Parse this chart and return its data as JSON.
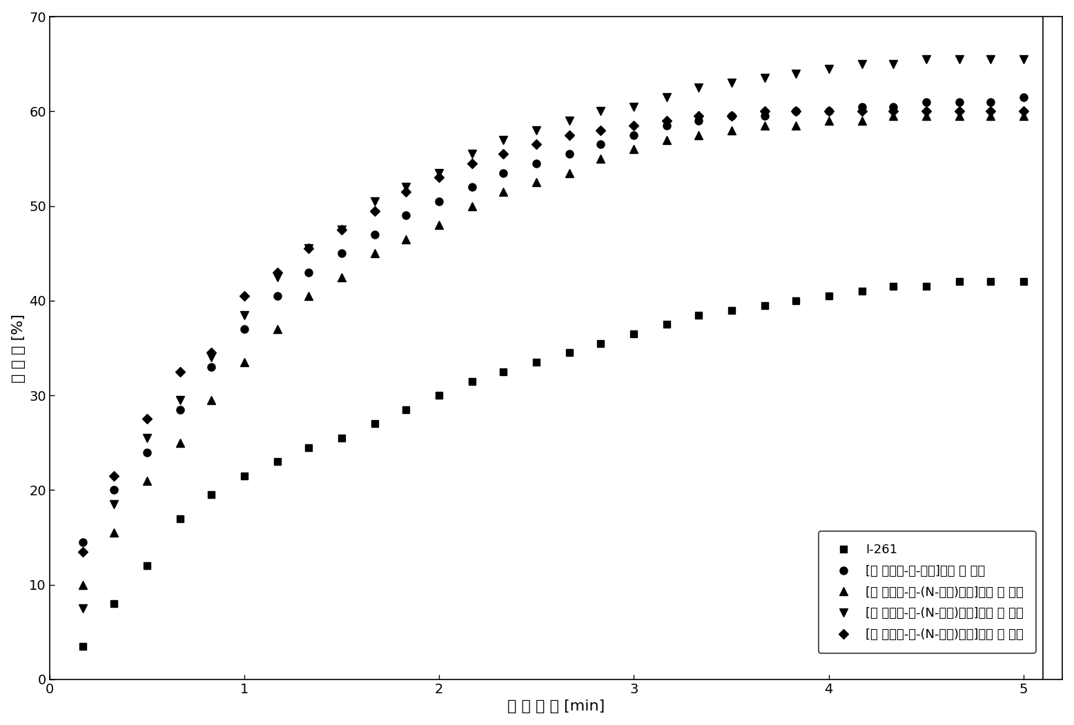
{
  "title": "",
  "xlabel": "光 照 时 间 [min]",
  "ylabel": "转 化 率 [%]",
  "xlim": [
    0,
    5.2
  ],
  "ylim": [
    0,
    70
  ],
  "xticks": [
    0,
    1,
    2,
    3,
    4,
    5
  ],
  "yticks": [
    0,
    10,
    20,
    30,
    40,
    50,
    60,
    70
  ],
  "series": [
    {
      "label": "I-261",
      "marker": "s",
      "color": "#000000",
      "markersize": 7,
      "x": [
        0.17,
        0.33,
        0.5,
        0.67,
        0.83,
        1.0,
        1.17,
        1.33,
        1.5,
        1.67,
        1.83,
        2.0,
        2.17,
        2.33,
        2.5,
        2.67,
        2.83,
        3.0,
        3.17,
        3.33,
        3.5,
        3.67,
        3.83,
        4.0,
        4.17,
        4.33,
        4.5,
        4.67,
        4.83,
        5.0
      ],
      "y": [
        3.5,
        8.0,
        12.0,
        17.0,
        19.5,
        21.5,
        23.0,
        24.5,
        25.5,
        27.0,
        28.5,
        30.0,
        31.5,
        32.5,
        33.5,
        34.5,
        35.5,
        36.5,
        37.5,
        38.5,
        39.0,
        39.5,
        40.0,
        40.5,
        41.0,
        41.5,
        41.5,
        42.0,
        42.0,
        42.0
      ]
    },
    {
      "label": "[环 戊二烯-铁-咋唢]六氟 磷 酸盐",
      "marker": "o",
      "color": "#000000",
      "markersize": 8,
      "x": [
        0.17,
        0.33,
        0.5,
        0.67,
        0.83,
        1.0,
        1.17,
        1.33,
        1.5,
        1.67,
        1.83,
        2.0,
        2.17,
        2.33,
        2.5,
        2.67,
        2.83,
        3.0,
        3.17,
        3.33,
        3.5,
        3.67,
        3.83,
        4.0,
        4.17,
        4.33,
        4.5,
        4.67,
        4.83,
        5.0
      ],
      "y": [
        14.5,
        20.0,
        24.0,
        28.5,
        33.0,
        37.0,
        40.5,
        43.0,
        45.0,
        47.0,
        49.0,
        50.5,
        52.0,
        53.5,
        54.5,
        55.5,
        56.5,
        57.5,
        58.5,
        59.0,
        59.5,
        59.5,
        60.0,
        60.0,
        60.5,
        60.5,
        61.0,
        61.0,
        61.0,
        61.5
      ]
    },
    {
      "label": "[环 戊二烯-铁-(N-乙基)咋唢]六氟 磷 酸盐",
      "marker": "^",
      "color": "#000000",
      "markersize": 8,
      "x": [
        0.17,
        0.33,
        0.5,
        0.67,
        0.83,
        1.0,
        1.17,
        1.33,
        1.5,
        1.67,
        1.83,
        2.0,
        2.17,
        2.33,
        2.5,
        2.67,
        2.83,
        3.0,
        3.17,
        3.33,
        3.5,
        3.67,
        3.83,
        4.0,
        4.17,
        4.33,
        4.5,
        4.67,
        4.83,
        5.0
      ],
      "y": [
        10.0,
        15.5,
        21.0,
        25.0,
        29.5,
        33.5,
        37.0,
        40.5,
        42.5,
        45.0,
        46.5,
        48.0,
        50.0,
        51.5,
        52.5,
        53.5,
        55.0,
        56.0,
        57.0,
        57.5,
        58.0,
        58.5,
        58.5,
        59.0,
        59.0,
        59.5,
        59.5,
        59.5,
        59.5,
        59.5
      ]
    },
    {
      "label": "[环 戊二烯-铁-(N-丁基)咋唢]六氟 磷 酸盐",
      "marker": "v",
      "color": "#000000",
      "markersize": 9,
      "x": [
        0.17,
        0.33,
        0.5,
        0.67,
        0.83,
        1.0,
        1.17,
        1.33,
        1.5,
        1.67,
        1.83,
        2.0,
        2.17,
        2.33,
        2.5,
        2.67,
        2.83,
        3.0,
        3.17,
        3.33,
        3.5,
        3.67,
        3.83,
        4.0,
        4.17,
        4.33,
        4.5,
        4.67,
        4.83,
        5.0
      ],
      "y": [
        7.5,
        18.5,
        25.5,
        29.5,
        34.0,
        38.5,
        42.5,
        45.5,
        47.5,
        50.5,
        52.0,
        53.5,
        55.5,
        57.0,
        58.0,
        59.0,
        60.0,
        60.5,
        61.5,
        62.5,
        63.0,
        63.5,
        64.0,
        64.5,
        65.0,
        65.0,
        65.5,
        65.5,
        65.5,
        65.5
      ]
    },
    {
      "label": "[环 戊二烯-铁-(N-辛基)咋唢]六氟 磷 酸盐",
      "marker": "D",
      "color": "#000000",
      "markersize": 7,
      "x": [
        0.17,
        0.33,
        0.5,
        0.67,
        0.83,
        1.0,
        1.17,
        1.33,
        1.5,
        1.67,
        1.83,
        2.0,
        2.17,
        2.33,
        2.5,
        2.67,
        2.83,
        3.0,
        3.17,
        3.33,
        3.5,
        3.67,
        3.83,
        4.0,
        4.17,
        4.33,
        4.5,
        4.67,
        4.83,
        5.0
      ],
      "y": [
        13.5,
        21.5,
        27.5,
        32.5,
        34.5,
        40.5,
        43.0,
        45.5,
        47.5,
        49.5,
        51.5,
        53.0,
        54.5,
        55.5,
        56.5,
        57.5,
        58.0,
        58.5,
        59.0,
        59.5,
        59.5,
        60.0,
        60.0,
        60.0,
        60.0,
        60.0,
        60.0,
        60.0,
        60.0,
        60.0
      ]
    }
  ],
  "background_color": "#ffffff",
  "font_size": 16,
  "tick_font_size": 14,
  "legend_fontsize": 13
}
